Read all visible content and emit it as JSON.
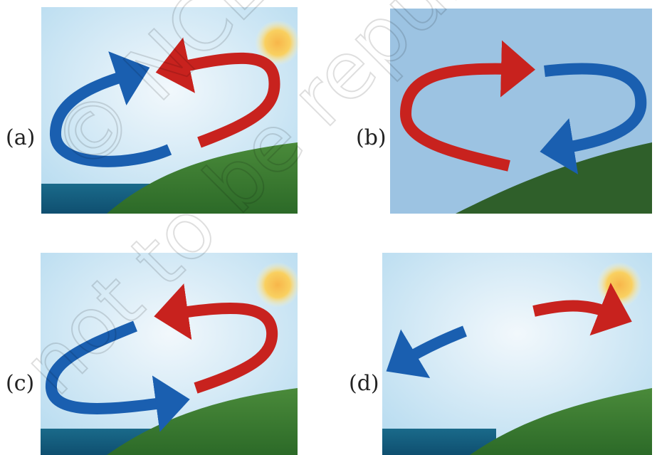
{
  "panels": [
    {
      "label": "(a)"
    },
    {
      "label": "(b)"
    },
    {
      "label": "(c)"
    },
    {
      "label": "(d)"
    }
  ],
  "watermark": {
    "line1": "© NCERT",
    "line2": "not to be republished"
  }
}
